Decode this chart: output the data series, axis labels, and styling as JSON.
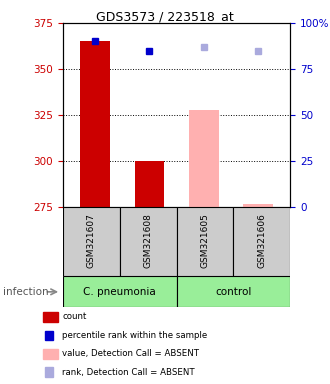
{
  "title": "GDS3573 / 223518_at",
  "samples": [
    "GSM321607",
    "GSM321608",
    "GSM321605",
    "GSM321606"
  ],
  "ylim": [
    275,
    375
  ],
  "yticks": [
    275,
    300,
    325,
    350,
    375
  ],
  "y2ticks_pct": [
    0,
    25,
    50,
    75,
    100
  ],
  "bar_values": [
    365,
    300,
    328,
    277
  ],
  "bar_colors": [
    "#cc0000",
    "#cc0000",
    "#ffb0b0",
    "#ffb0b0"
  ],
  "square_values": [
    365,
    360,
    362,
    360
  ],
  "square_colors": [
    "#0000cc",
    "#0000cc",
    "#aaaadd",
    "#aaaadd"
  ],
  "left_axis_color": "#cc0000",
  "right_axis_color": "#0000cc",
  "group_defs": [
    {
      "label": "C. pneumonia",
      "color": "#99ee99",
      "cols": [
        0,
        1
      ]
    },
    {
      "label": "control",
      "color": "#99ee99",
      "cols": [
        2,
        3
      ]
    }
  ],
  "legend_items": [
    {
      "color": "#cc0000",
      "label": "count",
      "marker": "rect"
    },
    {
      "color": "#0000cc",
      "label": "percentile rank within the sample",
      "marker": "square"
    },
    {
      "color": "#ffb0b0",
      "label": "value, Detection Call = ABSENT",
      "marker": "rect"
    },
    {
      "color": "#aaaadd",
      "label": "rank, Detection Call = ABSENT",
      "marker": "square"
    }
  ],
  "infection_label": "infection"
}
